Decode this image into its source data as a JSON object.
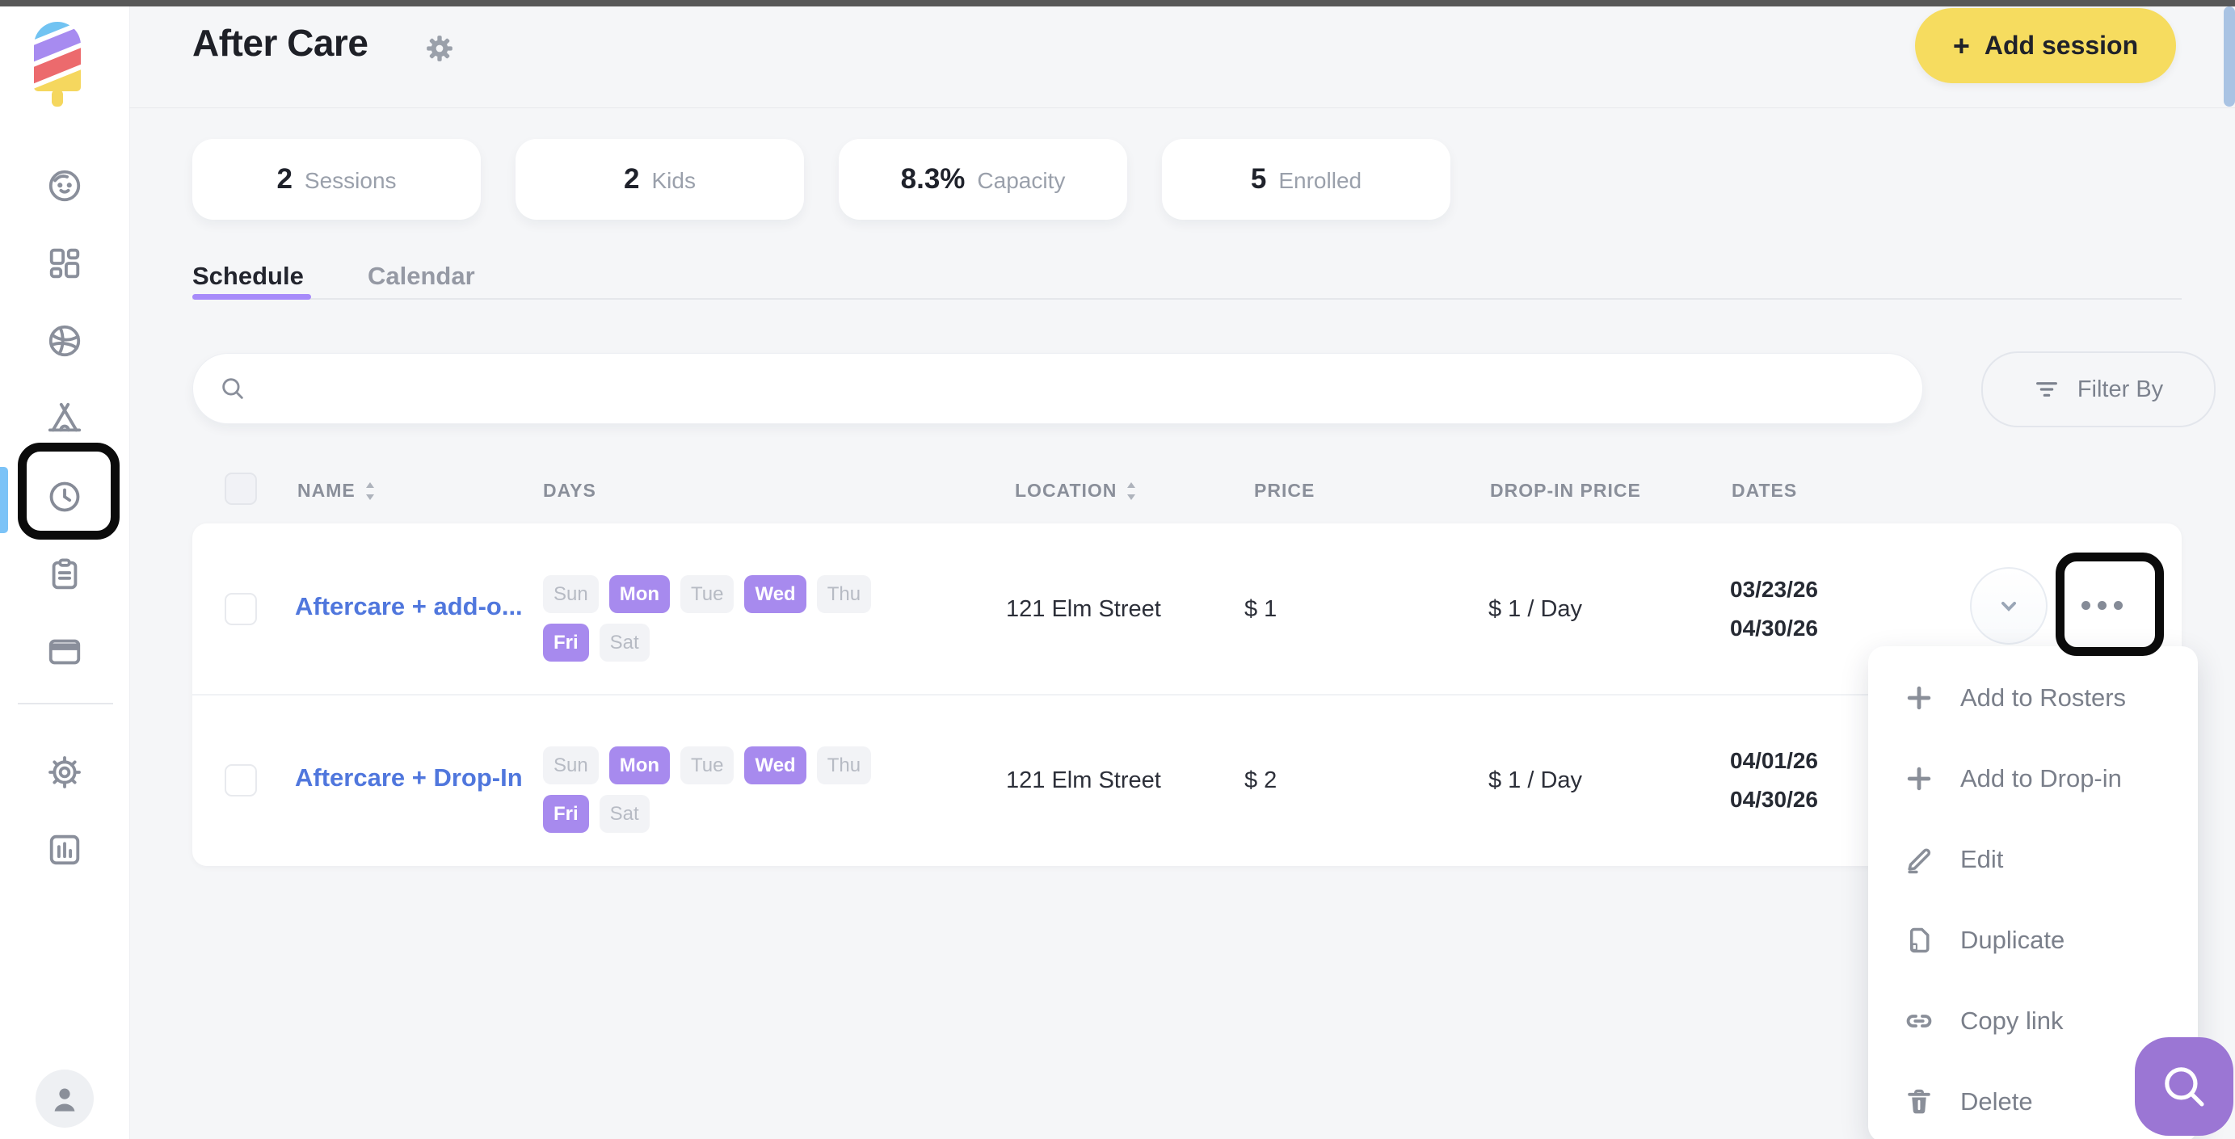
{
  "sidebar": {
    "logo": "popsicle-logo",
    "items": [
      {
        "icon": "face-icon",
        "active": false
      },
      {
        "icon": "grid-icon",
        "active": false
      },
      {
        "icon": "ball-icon",
        "active": false
      },
      {
        "icon": "tent-icon",
        "active": false
      },
      {
        "icon": "clock-icon",
        "active": true
      },
      {
        "icon": "clipboard-icon",
        "active": false
      },
      {
        "icon": "credit-card-icon",
        "active": false
      },
      {
        "icon": "gear-icon",
        "active": false
      },
      {
        "icon": "bar-chart-icon",
        "active": false
      }
    ],
    "avatar": "person-icon"
  },
  "header": {
    "title": "After Care",
    "settings_icon": "gear-icon",
    "add_session": {
      "icon": "plus-icon",
      "label": "Add session",
      "plus": "+"
    }
  },
  "stats": [
    {
      "value": "2",
      "label": "Sessions"
    },
    {
      "value": "2",
      "label": "Kids"
    },
    {
      "value": "8.3%",
      "label": "Capacity"
    },
    {
      "value": "5",
      "label": "Enrolled"
    }
  ],
  "tabs": [
    {
      "label": "Schedule",
      "active": true
    },
    {
      "label": "Calendar",
      "active": false
    }
  ],
  "search": {
    "placeholder": "",
    "icon": "search-icon"
  },
  "filter_button": {
    "icon": "filter-icon",
    "label": "Filter By"
  },
  "table": {
    "columns": [
      {
        "label": "NAME",
        "sortable": true
      },
      {
        "label": "DAYS",
        "sortable": false
      },
      {
        "label": "LOCATION",
        "sortable": true
      },
      {
        "label": "PRICE",
        "sortable": false
      },
      {
        "label": "DROP-IN PRICE",
        "sortable": false
      },
      {
        "label": "DATES",
        "sortable": false
      }
    ],
    "days_order": [
      "Sun",
      "Mon",
      "Tue",
      "Wed",
      "Thu",
      "Fri",
      "Sat"
    ],
    "rows": [
      {
        "name": "Aftercare + add-o...",
        "active_days": [
          "Mon",
          "Wed",
          "Fri"
        ],
        "location": "121 Elm Street",
        "price": "$ 1",
        "drop_in_price": "$ 1 / Day",
        "start_date": "03/23/26",
        "end_date": "04/30/26"
      },
      {
        "name": "Aftercare + Drop-In",
        "active_days": [
          "Mon",
          "Wed",
          "Fri"
        ],
        "location": "121 Elm Street",
        "price": "$ 2",
        "drop_in_price": "$ 1 / Day",
        "start_date": "04/01/26",
        "end_date": "04/30/26"
      }
    ]
  },
  "row_actions": {
    "expand_icon": "chevron-down-icon",
    "more_icon": "ellipsis-icon"
  },
  "context_menu": {
    "items": [
      {
        "icon": "plus-icon",
        "label": "Add to Rosters"
      },
      {
        "icon": "plus-icon",
        "label": "Add to Drop-in"
      },
      {
        "icon": "pencil-icon",
        "label": "Edit"
      },
      {
        "icon": "duplicate-icon",
        "label": "Duplicate"
      },
      {
        "icon": "link-icon",
        "label": "Copy link"
      },
      {
        "icon": "trash-icon",
        "label": "Delete"
      }
    ]
  },
  "fab": {
    "icon": "search-icon"
  },
  "colors": {
    "accent_yellow": "#f6dc5f",
    "chip_purple": "#a78aee",
    "link_blue": "#5077dd",
    "fab_purple": "#9b76d4",
    "active_blue": "#7cc3f7",
    "tab_underline": "#a78bfa"
  }
}
